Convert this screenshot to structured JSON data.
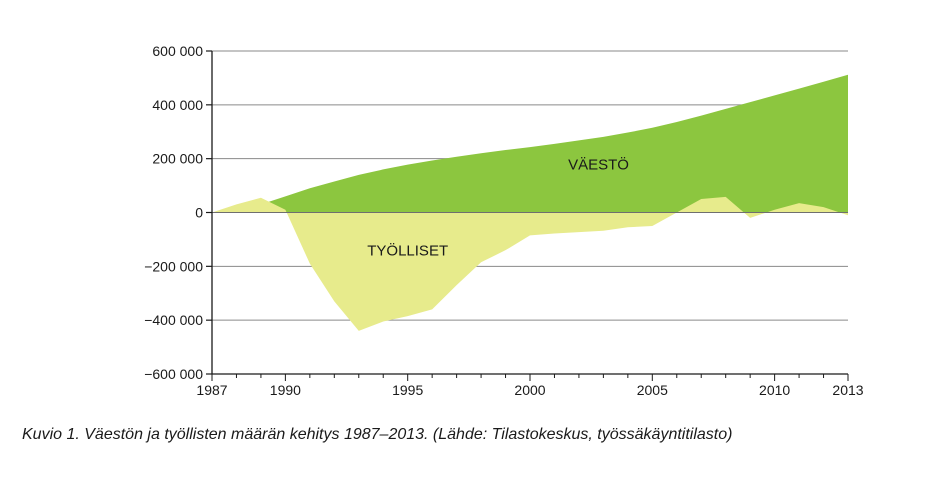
{
  "caption": "Kuvio 1. Väestön ja työllisten määrän kehitys 1987–2013. (Lähde: Tilastokeskus, työssäkäyntitilasto)",
  "chart_data": {
    "type": "area",
    "title": "",
    "xlabel": "",
    "ylabel": "",
    "xlim": [
      1987,
      2013
    ],
    "ylim": [
      -600000,
      600000
    ],
    "x_ticks": [
      1987,
      1990,
      1995,
      2000,
      2005,
      2010,
      2013
    ],
    "y_ticks": [
      {
        "value": 600000,
        "label": "600 000"
      },
      {
        "value": 400000,
        "label": "400 000"
      },
      {
        "value": 200000,
        "label": "200 000"
      },
      {
        "value": 0,
        "label": "0"
      },
      {
        "value": -200000,
        "label": "−200 000"
      },
      {
        "value": -400000,
        "label": "−400 000"
      },
      {
        "value": -600000,
        "label": "−600 000"
      }
    ],
    "grid": "horizontal",
    "series": [
      {
        "name": "VÄESTÖ",
        "color": "#8cc63f",
        "x": [
          1987,
          1988,
          1989,
          1990,
          1991,
          1992,
          1993,
          1994,
          1995,
          1996,
          1997,
          1998,
          1999,
          2000,
          2001,
          2002,
          2003,
          2004,
          2005,
          2006,
          2007,
          2008,
          2009,
          2010,
          2011,
          2012,
          2013
        ],
        "y": [
          0,
          15000,
          30000,
          60000,
          90000,
          115000,
          140000,
          160000,
          178000,
          193000,
          207000,
          220000,
          232000,
          243000,
          255000,
          268000,
          281000,
          297000,
          315000,
          336000,
          360000,
          385000,
          410000,
          435000,
          460000,
          486000,
          512000
        ]
      },
      {
        "name": "TYÖLLISET",
        "color": "#e7eb8c",
        "x": [
          1987,
          1988,
          1989,
          1990,
          1991,
          1992,
          1993,
          1994,
          1995,
          1996,
          1997,
          1998,
          1999,
          2000,
          2001,
          2002,
          2003,
          2004,
          2005,
          2006,
          2007,
          2008,
          2009,
          2010,
          2011,
          2012,
          2013
        ],
        "y": [
          0,
          30000,
          55000,
          10000,
          -190000,
          -330000,
          -440000,
          -405000,
          -385000,
          -360000,
          -270000,
          -185000,
          -140000,
          -85000,
          -78000,
          -73000,
          -68000,
          -55000,
          -50000,
          0,
          50000,
          58000,
          -20000,
          10000,
          35000,
          20000,
          -10000
        ]
      }
    ],
    "annotations": [
      {
        "text": "VÄESTÖ",
        "x": 2002.8,
        "y": 160000
      },
      {
        "text": "TYÖLLISET",
        "x": 1995,
        "y": -160000
      }
    ]
  }
}
